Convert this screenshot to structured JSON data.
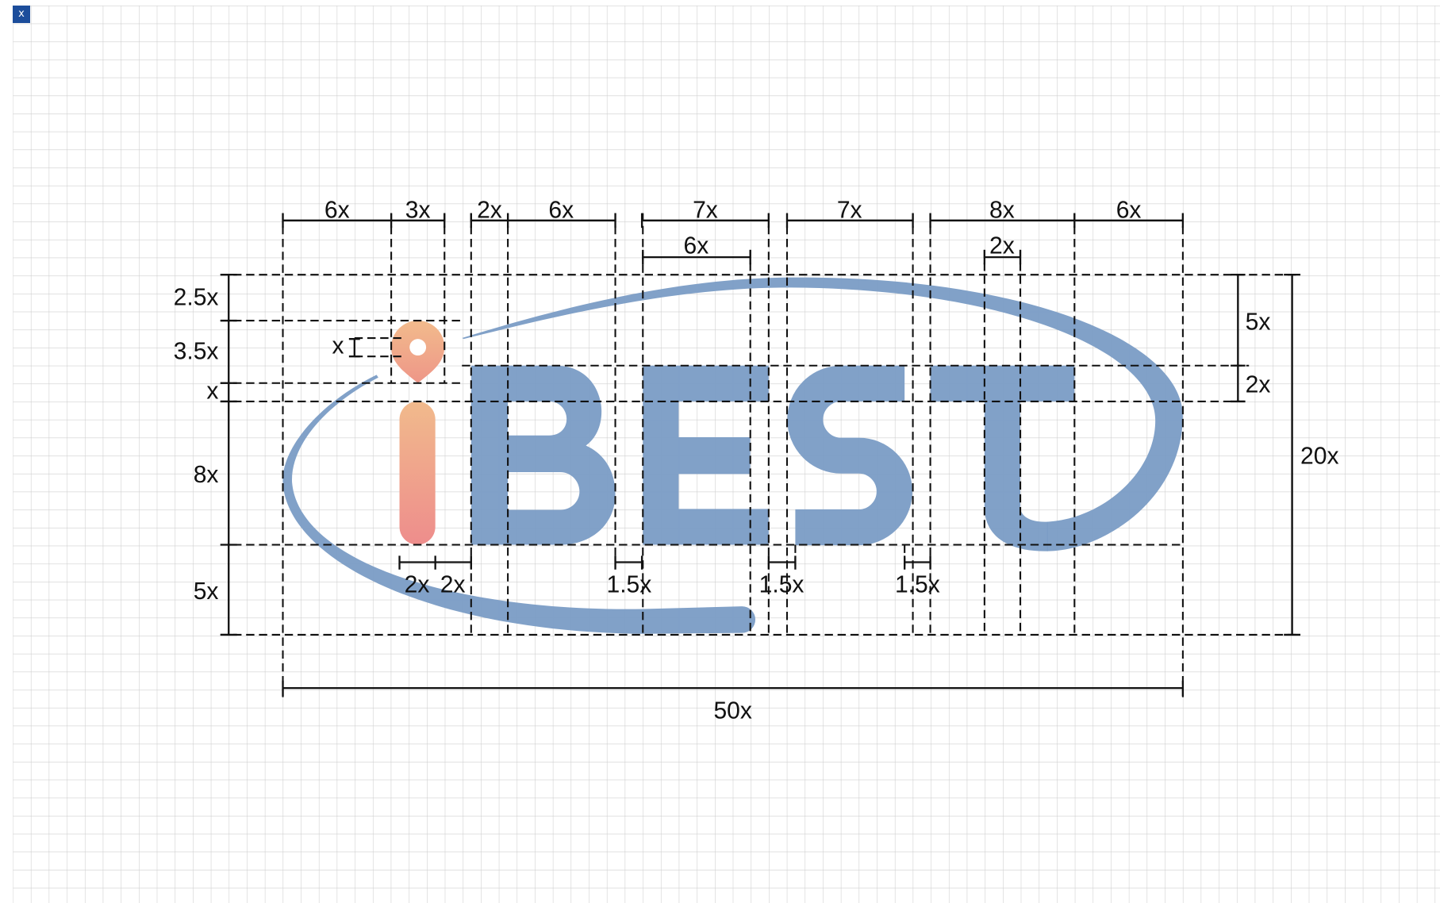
{
  "close_button": {
    "label": "x"
  },
  "logo": {
    "wordmark": "iBEST"
  },
  "dimensions": {
    "top_row": [
      "6x",
      "3x",
      "2x",
      "6x",
      "7x",
      "7x",
      "8x",
      "6x"
    ],
    "second_row": [
      "6x",
      "2x"
    ],
    "left_column": [
      "2.5x",
      "3.5x",
      "x",
      "8x",
      "5x"
    ],
    "dot_hole": "x",
    "right_inner": [
      "5x",
      "2x"
    ],
    "right_total": "20x",
    "bottom_gaps": [
      "2x",
      "2x",
      "1.5x",
      "1.5x",
      "1.5x"
    ],
    "total_width": "50x"
  },
  "colors": {
    "logo_blue": "#7a9cc5",
    "dot_top": "#f2bb8c",
    "dot_bottom": "#ee9688",
    "stem_top": "#f1ba8c",
    "stem_bottom": "#ee8d8c",
    "grid": "#cfcfcf",
    "close_button": "#1c4d9b"
  }
}
